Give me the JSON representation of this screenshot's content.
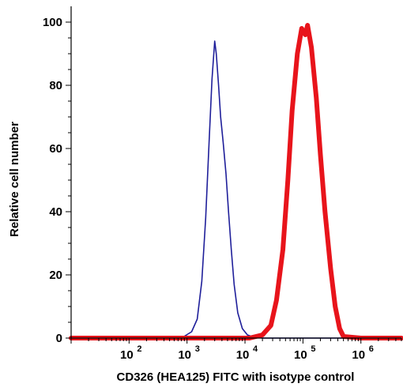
{
  "chart_data": {
    "type": "line",
    "xlabel": "CD326 (HEA125) FITC with isotype control",
    "ylabel": "Relative cell number",
    "xscale": "log",
    "xlim": [
      10,
      5000000
    ],
    "ylim": [
      0,
      105
    ],
    "y_ticks": [
      "0",
      "20",
      "40",
      "60",
      "80",
      "100"
    ],
    "x_ticks": [
      {
        "base": "10",
        "exp": "2"
      },
      {
        "base": "10",
        "exp": "3"
      },
      {
        "base": "10",
        "exp": "4"
      },
      {
        "base": "10",
        "exp": "5"
      },
      {
        "base": "10",
        "exp": "6"
      }
    ],
    "legend": "none",
    "grid": false,
    "series": [
      {
        "color": "#1f1f9a",
        "stroke": "thin",
        "x": [
          10,
          300,
          800,
          1200,
          1500,
          1800,
          2100,
          2400,
          2700,
          3000,
          3200,
          3500,
          3800,
          4200,
          4700,
          5200,
          5800,
          6500,
          7500,
          9000,
          11000,
          14000,
          20000,
          100000,
          5000000
        ],
        "y": [
          0,
          0,
          0,
          2,
          6,
          18,
          38,
          62,
          82,
          94,
          90,
          80,
          70,
          62,
          52,
          40,
          28,
          17,
          8,
          3,
          1,
          0.3,
          0,
          0,
          0
        ]
      },
      {
        "color": "#e8141b",
        "stroke": "thick",
        "x": [
          10,
          3000,
          12000,
          20000,
          28000,
          35000,
          45000,
          55000,
          65000,
          80000,
          95000,
          110000,
          120000,
          140000,
          170000,
          200000,
          240000,
          300000,
          360000,
          430000,
          500000,
          1000000,
          5000000
        ],
        "y": [
          0,
          0,
          0,
          1,
          4,
          12,
          28,
          50,
          72,
          90,
          98,
          96,
          99,
          92,
          76,
          58,
          40,
          22,
          10,
          3,
          0.5,
          0,
          0
        ]
      }
    ]
  }
}
